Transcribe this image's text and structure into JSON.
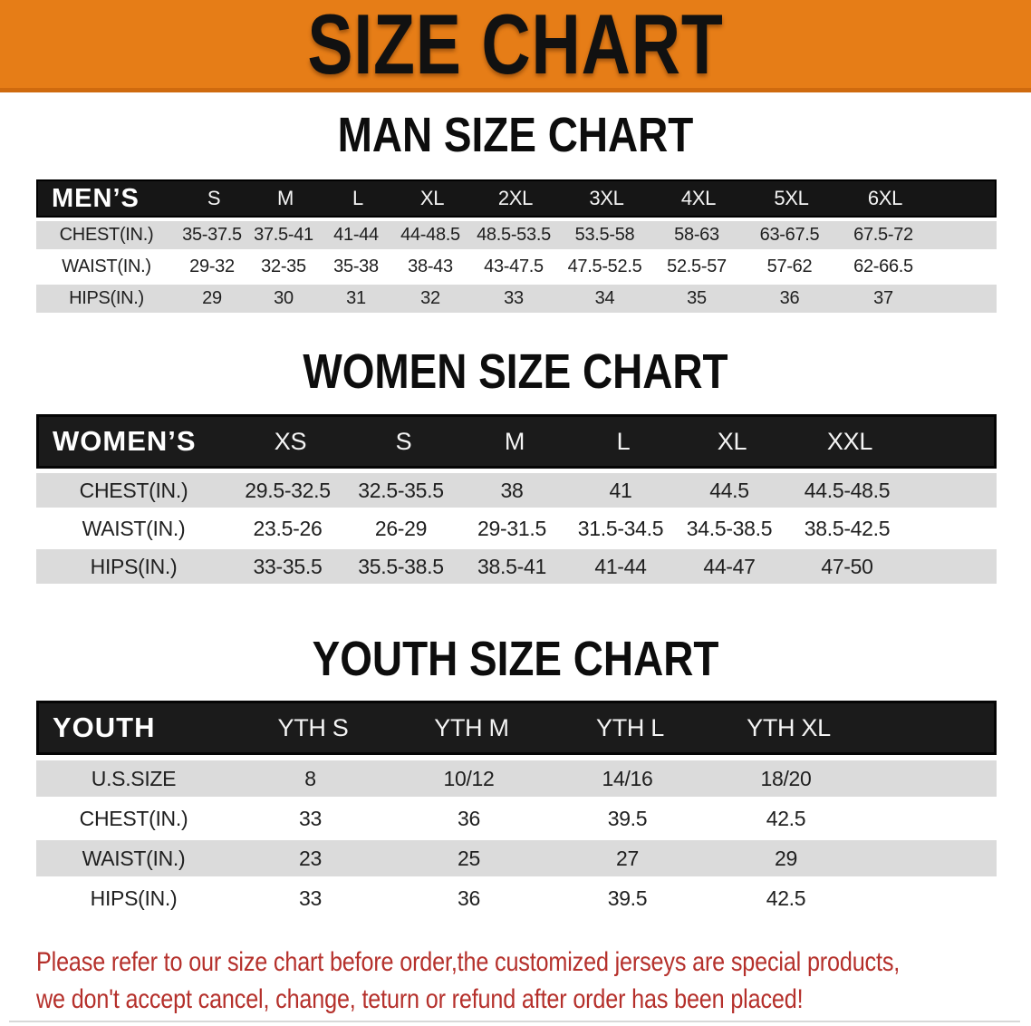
{
  "banner": {
    "title": "SIZE CHART",
    "bg_color": "#E67D17",
    "title_color": "#111111"
  },
  "colors": {
    "table_header_bg": "#161616",
    "row_alt_gray": "#DBDBDB",
    "disclaimer_red": "#B5302B"
  },
  "sections": {
    "men": {
      "heading": "MAN SIZE CHART",
      "corner_label": "MEN’S",
      "sizes": [
        "S",
        "M",
        "L",
        "XL",
        "2XL",
        "3XL",
        "4XL",
        "5XL",
        "6XL"
      ],
      "rows": [
        {
          "label": "CHEST(IN.)",
          "values": [
            "35-37.5",
            "37.5-41",
            "41-44",
            "44-48.5",
            "48.5-53.5",
            "53.5-58",
            "58-63",
            "63-67.5",
            "67.5-72"
          ]
        },
        {
          "label": "WAIST(IN.)",
          "values": [
            "29-32",
            "32-35",
            "35-38",
            "38-43",
            "43-47.5",
            "47.5-52.5",
            "52.5-57",
            "57-62",
            "62-66.5"
          ]
        },
        {
          "label": "HIPS(IN.)",
          "values": [
            "29",
            "30",
            "31",
            "32",
            "33",
            "34",
            "35",
            "36",
            "37"
          ]
        }
      ]
    },
    "women": {
      "heading": "WOMEN SIZE CHART",
      "corner_label": "WOMEN’S",
      "sizes": [
        "XS",
        "S",
        "M",
        "L",
        "XL",
        "XXL"
      ],
      "rows": [
        {
          "label": "CHEST(IN.)",
          "values": [
            "29.5-32.5",
            "32.5-35.5",
            "38",
            "41",
            "44.5",
            "44.5-48.5"
          ]
        },
        {
          "label": "WAIST(IN.)",
          "values": [
            "23.5-26",
            "26-29",
            "29-31.5",
            "31.5-34.5",
            "34.5-38.5",
            "38.5-42.5"
          ]
        },
        {
          "label": "HIPS(IN.)",
          "values": [
            "33-35.5",
            "35.5-38.5",
            "38.5-41",
            "41-44",
            "44-47",
            "47-50"
          ]
        }
      ]
    },
    "youth": {
      "heading": "YOUTH SIZE CHART",
      "corner_label": "YOUTH",
      "sizes": [
        "YTH S",
        "YTH M",
        "YTH L",
        "YTH XL"
      ],
      "rows": [
        {
          "label": "U.S.SIZE",
          "values": [
            "8",
            "10/12",
            "14/16",
            "18/20"
          ]
        },
        {
          "label": "CHEST(IN.)",
          "values": [
            "33",
            "36",
            "39.5",
            "42.5"
          ]
        },
        {
          "label": "WAIST(IN.)",
          "values": [
            "23",
            "25",
            "27",
            "29"
          ]
        },
        {
          "label": "HIPS(IN.)",
          "values": [
            "33",
            "36",
            "39.5",
            "42.5"
          ]
        }
      ]
    }
  },
  "disclaimer": {
    "line1": "Please refer to our size chart before order,the customized jerseys are special products,",
    "line2": "we don't accept cancel, change, teturn or refund after order has been placed!"
  }
}
